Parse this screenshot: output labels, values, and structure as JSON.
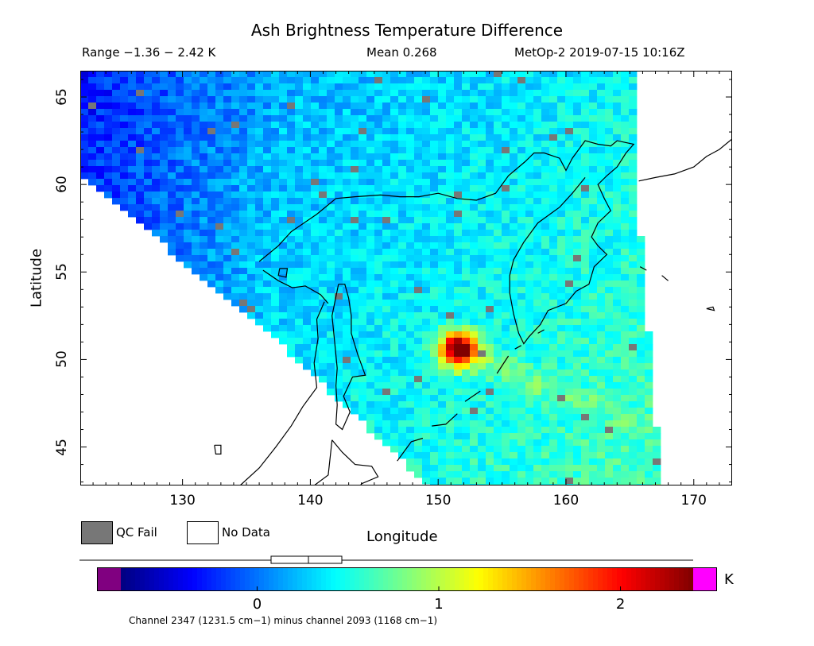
{
  "header": {
    "title": "Ash Brightness Temperature Difference",
    "range": "Range −1.36 − 2.42 K",
    "mean": "Mean 0.268",
    "satellite": "MetOp-2 2019-07-15 10:16Z"
  },
  "chart_data": {
    "type": "heatmap",
    "xlabel": "Longitude",
    "ylabel": "Latitude",
    "xlim": [
      122,
      173
    ],
    "ylim": [
      42.8,
      66.5
    ],
    "x_ticks": [
      130,
      140,
      150,
      160,
      170
    ],
    "y_ticks": [
      45,
      50,
      55,
      60,
      65
    ],
    "value_range": [
      -1.36,
      2.42
    ],
    "mean": 0.268,
    "unit": "K",
    "hotspot": {
      "lon": 151.5,
      "lat": 50.6,
      "value": 2.4
    },
    "colorbar": {
      "ticks": [
        0,
        1,
        2
      ],
      "min": -0.75,
      "max": 2.4,
      "under_color": "#800080",
      "over_color": "#ff00ff",
      "colors": [
        "#000080",
        "#0000ff",
        "#0080ff",
        "#00ffff",
        "#80ff80",
        "#ffff00",
        "#ff8000",
        "#ff0000",
        "#800000"
      ]
    }
  },
  "legend": {
    "qc_fail": "QC Fail",
    "no_data": "No Data",
    "qc_color": "#777777"
  },
  "footer": {
    "channel": "Channel 2347 (1231.5 cm−1) minus channel 2093 (1168 cm−1)"
  }
}
